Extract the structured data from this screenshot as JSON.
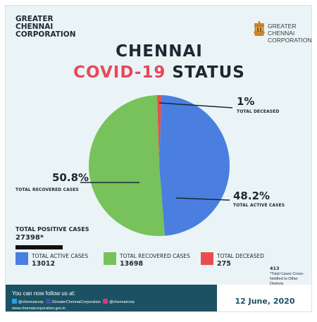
{
  "header": {
    "org_left": [
      "GREATER",
      "CHENNAI",
      "CORPORATION"
    ],
    "org_right": [
      "GREATER",
      "CHENNAI",
      "CORPORATION"
    ],
    "seal_icon": "corporation-seal-icon"
  },
  "title": {
    "line1": "CHENNAI",
    "line2_accent": "COVID-19",
    "line2_rest": "STATUS"
  },
  "chart_data": {
    "type": "pie",
    "slices": [
      {
        "label": "TOTAL ACTIVE CASES",
        "percent_label": "48.2%",
        "value": 13012,
        "color": "#4a7fe0"
      },
      {
        "label": "TOTAL RECOVERED CASES",
        "percent_label": "50.8%",
        "value": 13698,
        "color": "#77c25a"
      },
      {
        "label": "TOTAL DECEASED",
        "percent_label": "1%",
        "value": 275,
        "color": "#ea4d4d"
      }
    ],
    "legend": "bottom"
  },
  "totals": {
    "positive_label": "TOTAL POSITIVE CASES",
    "positive_value": "27398*"
  },
  "legend": [
    {
      "label": "TOTAL ACTIVE CASES",
      "value": "13012",
      "color": "#4a7fe0"
    },
    {
      "label": "TOTAL RECOVERED CASES",
      "value": "13698",
      "color": "#77c25a"
    },
    {
      "label": "TOTAL DECEASED",
      "value": "275",
      "color": "#ea4d4d"
    }
  ],
  "note": {
    "number": "413",
    "text": "*Total Cases Cross-Notified to Other Districts"
  },
  "footer": {
    "follow": "You can now follow us at:",
    "twitter": "@chennaicorp",
    "facebook": "/GreaterChennaiCorporation",
    "instagram": "@chennaicorp",
    "website": "www.chennaicorporation.gov.in",
    "date": "12 June, 2020"
  }
}
